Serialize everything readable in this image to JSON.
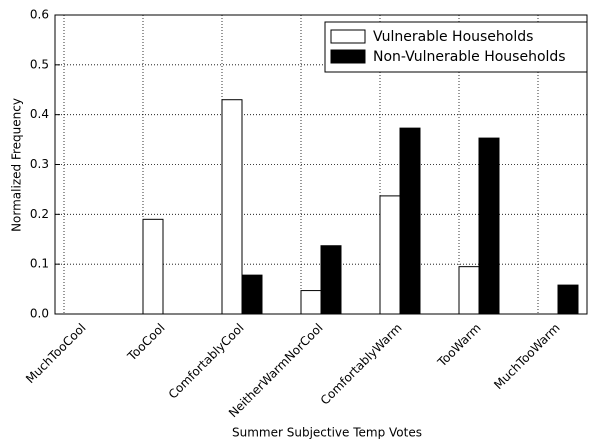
{
  "chart_data": {
    "type": "bar",
    "xlabel": "Summer Subjective Temp Votes",
    "ylabel": "Normalized Frequency",
    "categories": [
      "MuchTooCool",
      "TooCool",
      "ComfortablyCool",
      "NeitherWarmNorCool",
      "ComfortablyWarm",
      "TooWarm",
      "MuchTooWarm"
    ],
    "series": [
      {
        "name": "Vulnerable Households",
        "color": "#ffffff",
        "values": [
          0,
          0.19,
          0.43,
          0.047,
          0.237,
          0.095,
          0
        ]
      },
      {
        "name": "Non-Vulnerable Households",
        "color": "#000000",
        "values": [
          0,
          0,
          0.078,
          0.137,
          0.373,
          0.353,
          0.058
        ]
      }
    ],
    "ylim": [
      0,
      0.6
    ],
    "yticks": [
      {
        "value": 0,
        "label": "0.0"
      },
      0.1,
      0.2,
      0.3,
      0.4,
      0.5,
      0.6
    ],
    "grid": true,
    "legend": "upper right"
  }
}
